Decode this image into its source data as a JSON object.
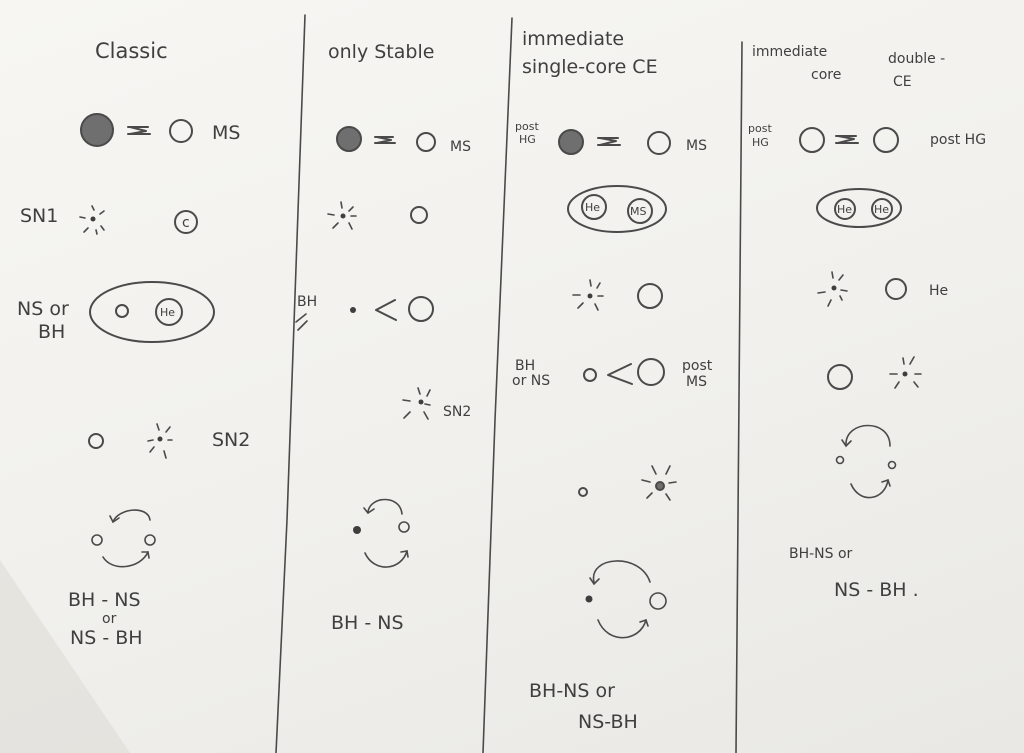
{
  "columns": [
    {
      "title": "Classic",
      "labels": {
        "ms": "MS",
        "sn1": "SN1",
        "sn1_inner": "c",
        "binary_left": "NS or",
        "binary_left2": "BH",
        "he": "He",
        "sn2": "SN2",
        "outcome_line1": "BH - NS",
        "outcome_or": "or",
        "outcome_line2": "NS - BH"
      }
    },
    {
      "title": "only Stable",
      "labels": {
        "ms": "MS",
        "bh": "BH",
        "sn2": "SN2",
        "outcome": "BH - NS"
      }
    },
    {
      "title_line1": "immediate",
      "title_line2": "single-core CE",
      "labels": {
        "post_hg_1": "post",
        "post_hg_2": "HG",
        "ms": "MS",
        "he": "He",
        "ms_inner": "MS",
        "bh_or_ns_1": "BH",
        "bh_or_ns_2": "or NS",
        "post_ms_1": "post",
        "post_ms_2": "MS",
        "outcome_line1": "BH-NS or",
        "outcome_line2": "NS-BH"
      }
    },
    {
      "title_line1": "immediate",
      "title_line2": "core",
      "title_line3": "double -",
      "title_line4": "CE",
      "labels": {
        "post_hg_1": "post",
        "post_hg_2": "HG",
        "post_hg_right": "post HG",
        "he1": "He",
        "he2": "He",
        "he_label": "He",
        "outcome_line1": "BH-NS or",
        "outcome_line2": "NS - BH ."
      }
    }
  ]
}
